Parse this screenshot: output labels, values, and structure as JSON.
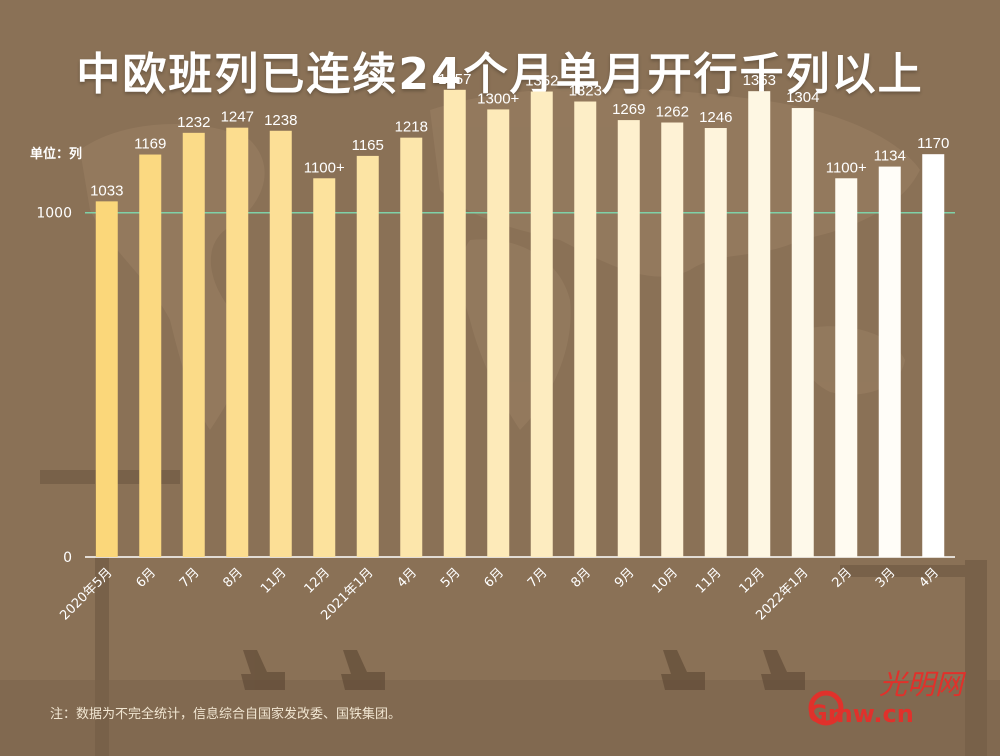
{
  "title": "中欧班列已连续24个月单月开行千列以上",
  "unit_label": "单位：列",
  "note": "注：数据为不完全统计，信息综合自国家发改委、国铁集团。",
  "logo": {
    "brand": "光明网",
    "domain": "Gmw.cn"
  },
  "colors": {
    "background": "#8a7156",
    "bar_start": "#fbd77a",
    "bar_end": "#ffffff",
    "reference_line": "#7fd1a8",
    "label": "#ffffff"
  },
  "chart_data": {
    "type": "bar",
    "categories": [
      "2020年5月",
      "6月",
      "7月",
      "8月",
      "11月",
      "12月",
      "2021年1月",
      "4月",
      "5月",
      "6月",
      "7月",
      "8月",
      "9月",
      "10月",
      "11月",
      "12月",
      "2022年1月",
      "2月",
      "3月",
      "4月"
    ],
    "values": [
      1033,
      1169,
      1232,
      1247,
      1238,
      1100,
      1165,
      1218,
      1357,
      1300,
      1352,
      1323,
      1269,
      1262,
      1246,
      1353,
      1304,
      1100,
      1134,
      1170
    ],
    "data_labels": [
      "1033",
      "1169",
      "1232",
      "1247",
      "1238",
      "1100+",
      "1165",
      "1218",
      "1357",
      "1300+",
      "1352",
      "1323",
      "1269",
      "1262",
      "1246",
      "1353",
      "1304",
      "1100+",
      "1134",
      "1170"
    ],
    "y_ticks": [
      "0",
      "1000"
    ],
    "reference_line": 1000,
    "title": "中欧班列已连续24个月单月开行千列以上",
    "xlabel": "",
    "ylabel": "单位：列",
    "ylim": [
      0,
      1400
    ],
    "grid": false,
    "note": "注：数据为不完全统计，信息综合自国家发改委、国铁集团。"
  }
}
